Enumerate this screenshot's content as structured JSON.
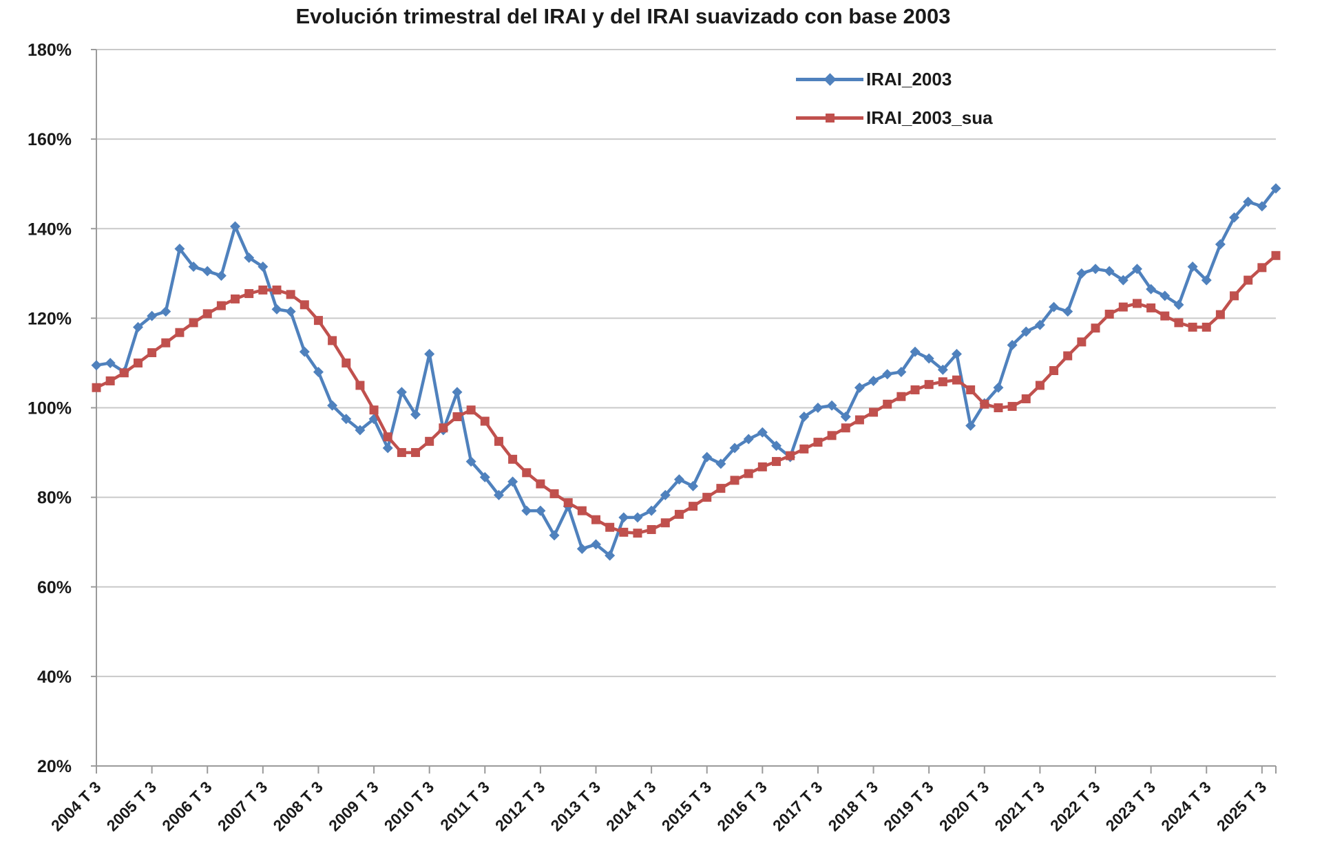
{
  "title": "Evolución trimestral del IRAI y del IRAI suavizado con base 2003",
  "legend": [
    {
      "label": "IRAI_2003",
      "color": "#4F81BD",
      "marker": "diamond"
    },
    {
      "label": "IRAI_2003_sua",
      "color": "#C0504D",
      "marker": "square"
    }
  ],
  "chart_data": {
    "type": "line",
    "title": "Evolución trimestral del IRAI y del IRAI suavizado con base 2003",
    "xlabel": "",
    "ylabel": "",
    "ylim": [
      20,
      180
    ],
    "ytick_step": 20,
    "ytick_format": "percent",
    "grid": true,
    "legend_position": "top-right-inside",
    "x_tick_every": 4,
    "x_tick_labels": [
      "2004 T 3",
      "2005 T 3",
      "2006 T 3",
      "2007 T 3",
      "2008 T 3",
      "2009 T 3",
      "2010 T 3",
      "2011 T 3",
      "2012 T 3",
      "2013 T 3",
      "2014 T 3",
      "2015 T 3",
      "2016 T 3",
      "2017 T 3",
      "2018 T 3",
      "2019 T 3",
      "2020 T 3",
      "2021 T 3",
      "2022 T 3",
      "2023 T 3",
      "2024 T 3",
      "2025 T 3"
    ],
    "categories": [
      "2004 T 3",
      "2004 T 4",
      "2005 T 1",
      "2005 T 2",
      "2005 T 3",
      "2005 T 4",
      "2006 T 1",
      "2006 T 2",
      "2006 T 3",
      "2006 T 4",
      "2007 T 1",
      "2007 T 2",
      "2007 T 3",
      "2007 T 4",
      "2008 T 1",
      "2008 T 2",
      "2008 T 3",
      "2008 T 4",
      "2009 T 1",
      "2009 T 2",
      "2009 T 3",
      "2009 T 4",
      "2010 T 1",
      "2010 T 2",
      "2010 T 3",
      "2010 T 4",
      "2011 T 1",
      "2011 T 2",
      "2011 T 3",
      "2011 T 4",
      "2012 T 1",
      "2012 T 2",
      "2012 T 3",
      "2012 T 4",
      "2013 T 1",
      "2013 T 2",
      "2013 T 3",
      "2013 T 4",
      "2014 T 1",
      "2014 T 2",
      "2014 T 3",
      "2014 T 4",
      "2015 T 1",
      "2015 T 2",
      "2015 T 3",
      "2015 T 4",
      "2016 T 1",
      "2016 T 2",
      "2016 T 3",
      "2016 T 4",
      "2017 T 1",
      "2017 T 2",
      "2017 T 3",
      "2017 T 4",
      "2018 T 1",
      "2018 T 2",
      "2018 T 3",
      "2018 T 4",
      "2019 T 1",
      "2019 T 2",
      "2019 T 3",
      "2019 T 4",
      "2020 T 1",
      "2020 T 2",
      "2020 T 3",
      "2020 T 4",
      "2021 T 1",
      "2021 T 2",
      "2021 T 3",
      "2021 T 4",
      "2022 T 1",
      "2022 T 2",
      "2022 T 3",
      "2022 T 4",
      "2023 T 1",
      "2023 T 2",
      "2023 T 3",
      "2023 T 4",
      "2024 T 1",
      "2024 T 2",
      "2024 T 3",
      "2024 T 4",
      "2025 T 1",
      "2025 T 2",
      "2025 T 3",
      "2025 T 4"
    ],
    "series": [
      {
        "name": "IRAI_2003",
        "color": "#4F81BD",
        "marker": "diamond",
        "values": [
          109.5,
          110,
          108,
          118,
          120.5,
          121.5,
          135.5,
          131.5,
          130.5,
          129.5,
          140.5,
          133.5,
          131.5,
          122,
          121.5,
          112.5,
          108,
          100.5,
          97.5,
          95,
          97.5,
          91,
          103.5,
          98.5,
          112,
          95,
          103.5,
          88,
          84.5,
          80.5,
          83.5,
          77,
          77,
          71.5,
          78,
          68.5,
          69.5,
          67,
          75.5,
          75.5,
          77,
          80.5,
          84,
          82.5,
          89,
          87.5,
          91,
          93,
          94.5,
          91.5,
          89,
          98,
          100,
          100.5,
          98,
          104.5,
          106,
          107.5,
          108,
          112.5,
          111,
          108.5,
          112,
          96,
          101,
          104.5,
          114,
          117,
          118.5,
          122.5,
          121.5,
          130,
          131,
          130.5,
          128.5,
          131,
          126.5,
          125,
          123,
          131.5,
          128.5,
          136.5,
          142.5,
          146,
          145,
          149
        ]
      },
      {
        "name": "IRAI_2003_sua",
        "color": "#C0504D",
        "marker": "square",
        "values": [
          104.5,
          106,
          107.8,
          110,
          112.3,
          114.5,
          116.8,
          119,
          121,
          122.8,
          124.3,
          125.5,
          126.3,
          126.3,
          125.3,
          123,
          119.5,
          115,
          110,
          105,
          99.5,
          93.5,
          90,
          90,
          92.5,
          95.5,
          98,
          99.5,
          97,
          92.5,
          88.5,
          85.5,
          83,
          80.8,
          78.8,
          77,
          75,
          73.3,
          72.2,
          72,
          72.8,
          74.3,
          76.2,
          78,
          80,
          82,
          83.8,
          85.3,
          86.8,
          88,
          89.3,
          90.8,
          92.3,
          93.8,
          95.5,
          97.3,
          99,
          100.8,
          102.5,
          104,
          105.2,
          105.8,
          106.2,
          104,
          100.8,
          100,
          100.3,
          102,
          105,
          108.3,
          111.6,
          114.7,
          117.8,
          120.9,
          122.5,
          123.3,
          122.3,
          120.5,
          119,
          118,
          118,
          120.8,
          125,
          128.5,
          131.3,
          134
        ]
      }
    ]
  }
}
